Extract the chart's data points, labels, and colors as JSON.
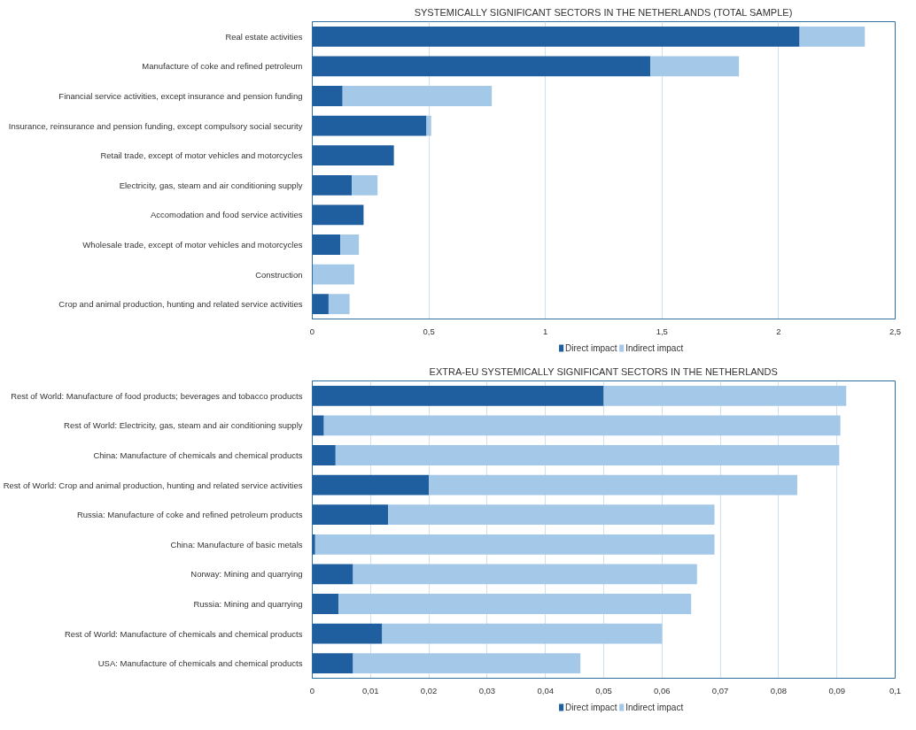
{
  "chart_data": [
    {
      "type": "bar",
      "orientation": "horizontal",
      "stacked": true,
      "title": "SYSTEMICALLY SIGNIFICANT SECTORS IN THE NETHERLANDS (TOTAL SAMPLE)",
      "categories": [
        "Real estate activities",
        "Manufacture of coke and refined petroleum",
        "Financial service activities, except insurance and pension funding",
        "Insurance, reinsurance and pension funding, except compulsory social security",
        "Retail trade, except of motor vehicles and motorcycles",
        "Electricity, gas, steam and air conditioning supply",
        "Accomodation and food service activities",
        "Wholesale trade, except of motor vehicles and motorcycles",
        "Construction",
        "Crop and animal production, hunting and related service activities"
      ],
      "series": [
        {
          "name": "Direct impact",
          "color": "#1f5fa0",
          "values": [
            2.09,
            1.45,
            0.13,
            0.49,
            0.35,
            0.17,
            0.22,
            0.12,
            0,
            0.07
          ]
        },
        {
          "name": "Indirect impact",
          "color": "#a4c8e8",
          "values": [
            0.28,
            0.38,
            0.64,
            0.02,
            0,
            0.11,
            0,
            0.08,
            0.18,
            0.09
          ]
        }
      ],
      "xlim": [
        0,
        2.5
      ],
      "xticks": [
        0,
        {
          "value": 0.5,
          "label": "0,5"
        },
        1,
        {
          "value": 1.5,
          "label": "1,5"
        },
        2,
        {
          "value": 2.5,
          "label": "2,5"
        }
      ],
      "grid": "x",
      "legend": "bottom"
    },
    {
      "type": "bar",
      "orientation": "horizontal",
      "stacked": true,
      "title": "EXTRA-EU SYSTEMICALLY SIGNIFICANT SECTORS IN THE NETHERLANDS",
      "categories": [
        "Rest of World: Manufacture of food products; beverages and tobacco products",
        "Rest of World: Electricity, gas, steam and air conditioning supply",
        "China: Manufacture of chemicals and chemical products",
        "Rest of World: Crop and animal production, hunting and related service activities",
        "Russia: Manufacture of coke and refined petroleum products",
        "China: Manufacture of basic metals",
        "Norway: Mining and quarrying",
        "Russia: Mining and quarrying",
        "Rest of World: Manufacture of chemicals and chemical products",
        "USA: Manufacture of chemicals and chemical products"
      ],
      "series": [
        {
          "name": "Direct impact",
          "color": "#1f5fa0",
          "values": [
            0.05,
            0.002,
            0.004,
            0.02,
            0.013,
            0.0005,
            0.007,
            0.0045,
            0.012,
            0.007
          ]
        },
        {
          "name": "Indirect impact",
          "color": "#a4c8e8",
          "values": [
            0.0416,
            0.0886,
            0.0864,
            0.0632,
            0.056,
            0.0685,
            0.059,
            0.0605,
            0.048,
            0.039
          ]
        }
      ],
      "xlim": [
        0,
        0.1
      ],
      "xticks": [
        0,
        {
          "value": 0.01,
          "label": "0,01"
        },
        {
          "value": 0.02,
          "label": "0,02"
        },
        {
          "value": 0.03,
          "label": "0,03"
        },
        {
          "value": 0.04,
          "label": "0,04"
        },
        {
          "value": 0.05,
          "label": "0,05"
        },
        {
          "value": 0.06,
          "label": "0,06"
        },
        {
          "value": 0.07,
          "label": "0,07"
        },
        {
          "value": 0.08,
          "label": "0,08"
        },
        {
          "value": 0.09,
          "label": "0,09"
        },
        {
          "value": 0.1,
          "label": "0,1"
        }
      ],
      "grid": "x",
      "legend": "bottom"
    }
  ]
}
